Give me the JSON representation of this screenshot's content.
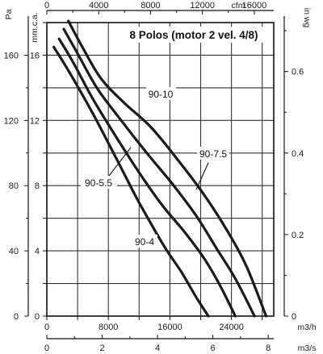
{
  "chart_data": {
    "type": "line",
    "title": "8 Polos (motor 2 vel. 4/8)",
    "grid": true,
    "axes": {
      "left_outer": {
        "label": "Pa",
        "range": [
          0,
          180
        ],
        "ticks": [
          "0",
          "40",
          "80",
          "120",
          "160"
        ]
      },
      "left_inner": {
        "label": "mm.c.a.",
        "range": [
          0,
          18
        ],
        "ticks": [
          "0",
          "4",
          "8",
          "12",
          "16"
        ]
      },
      "right": {
        "label": "in wg",
        "range": [
          0,
          0.72
        ],
        "ticks": [
          "0",
          "0.2",
          "0.4",
          "0.6"
        ]
      },
      "top": {
        "label": "cfm",
        "range": [
          0,
          17500
        ],
        "ticks": [
          "0",
          "4000",
          "8000",
          "12000",
          "16000"
        ]
      },
      "bottom_m3h": {
        "label": "m3/h",
        "range": [
          0,
          29500
        ],
        "ticks": [
          "0",
          "8000",
          "16000",
          "24000"
        ]
      },
      "bottom_m3s": {
        "label": "m3/s",
        "range": [
          0,
          8.2
        ],
        "ticks": [
          "0",
          "2",
          "4",
          "6",
          "8"
        ]
      }
    },
    "series": [
      {
        "name": "90-4",
        "x": [
          900,
          3000,
          6000,
          9000,
          11500,
          13500,
          15500,
          17500,
          19500,
          21000
        ],
        "y": [
          16.5,
          14.9,
          12.4,
          9.7,
          7.4,
          5.7,
          4.1,
          2.7,
          1.1,
          0
        ]
      },
      {
        "name": "90-5.5",
        "x": [
          1600,
          3500,
          6000,
          9000,
          12000,
          15000,
          18000,
          20500,
          22500,
          24500
        ],
        "y": [
          17.0,
          15.5,
          13.3,
          11.0,
          8.8,
          6.8,
          5.1,
          3.5,
          1.9,
          0
        ]
      },
      {
        "name": "90-7.5",
        "x": [
          2200,
          4000,
          6500,
          9500,
          13000,
          16500,
          19500,
          22000,
          24500,
          27000
        ],
        "y": [
          17.6,
          16.1,
          14.0,
          12.1,
          10.0,
          8.0,
          6.1,
          4.2,
          2.3,
          0
        ]
      },
      {
        "name": "90-10",
        "x": [
          2800,
          4500,
          7000,
          10000,
          13500,
          17000,
          20500,
          23500,
          26000,
          28500
        ],
        "y": [
          18.1,
          16.6,
          14.6,
          13.1,
          11.6,
          9.6,
          7.4,
          5.2,
          3.0,
          0
        ]
      }
    ]
  }
}
